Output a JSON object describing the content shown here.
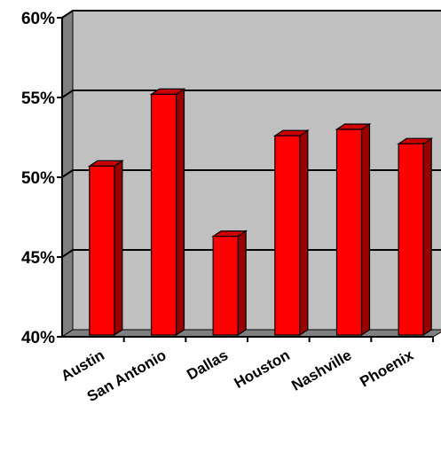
{
  "chart_data": {
    "type": "bar",
    "style": "3d",
    "title": "",
    "xlabel": "",
    "ylabel": "",
    "categories": [
      "Austin",
      "San Antonio",
      "Dallas",
      "Houston",
      "Nashville",
      "Phoenix"
    ],
    "values": [
      50.7,
      55.2,
      46.3,
      52.6,
      53.0,
      52.1
    ],
    "ylim": [
      40,
      60
    ],
    "yticks": [
      40,
      45,
      50,
      55,
      60
    ],
    "ytick_labels": [
      "40%",
      "45%",
      "50%",
      "55%",
      "60%"
    ],
    "grid": true,
    "legend": "none",
    "colors": {
      "bar_front": "#ff0000",
      "bar_top": "#cc0000",
      "bar_side": "#990000",
      "plot_back": "#c0c0c0",
      "plot_side": "#808080",
      "plot_floor": "#808080",
      "gridline": "#000000"
    }
  }
}
